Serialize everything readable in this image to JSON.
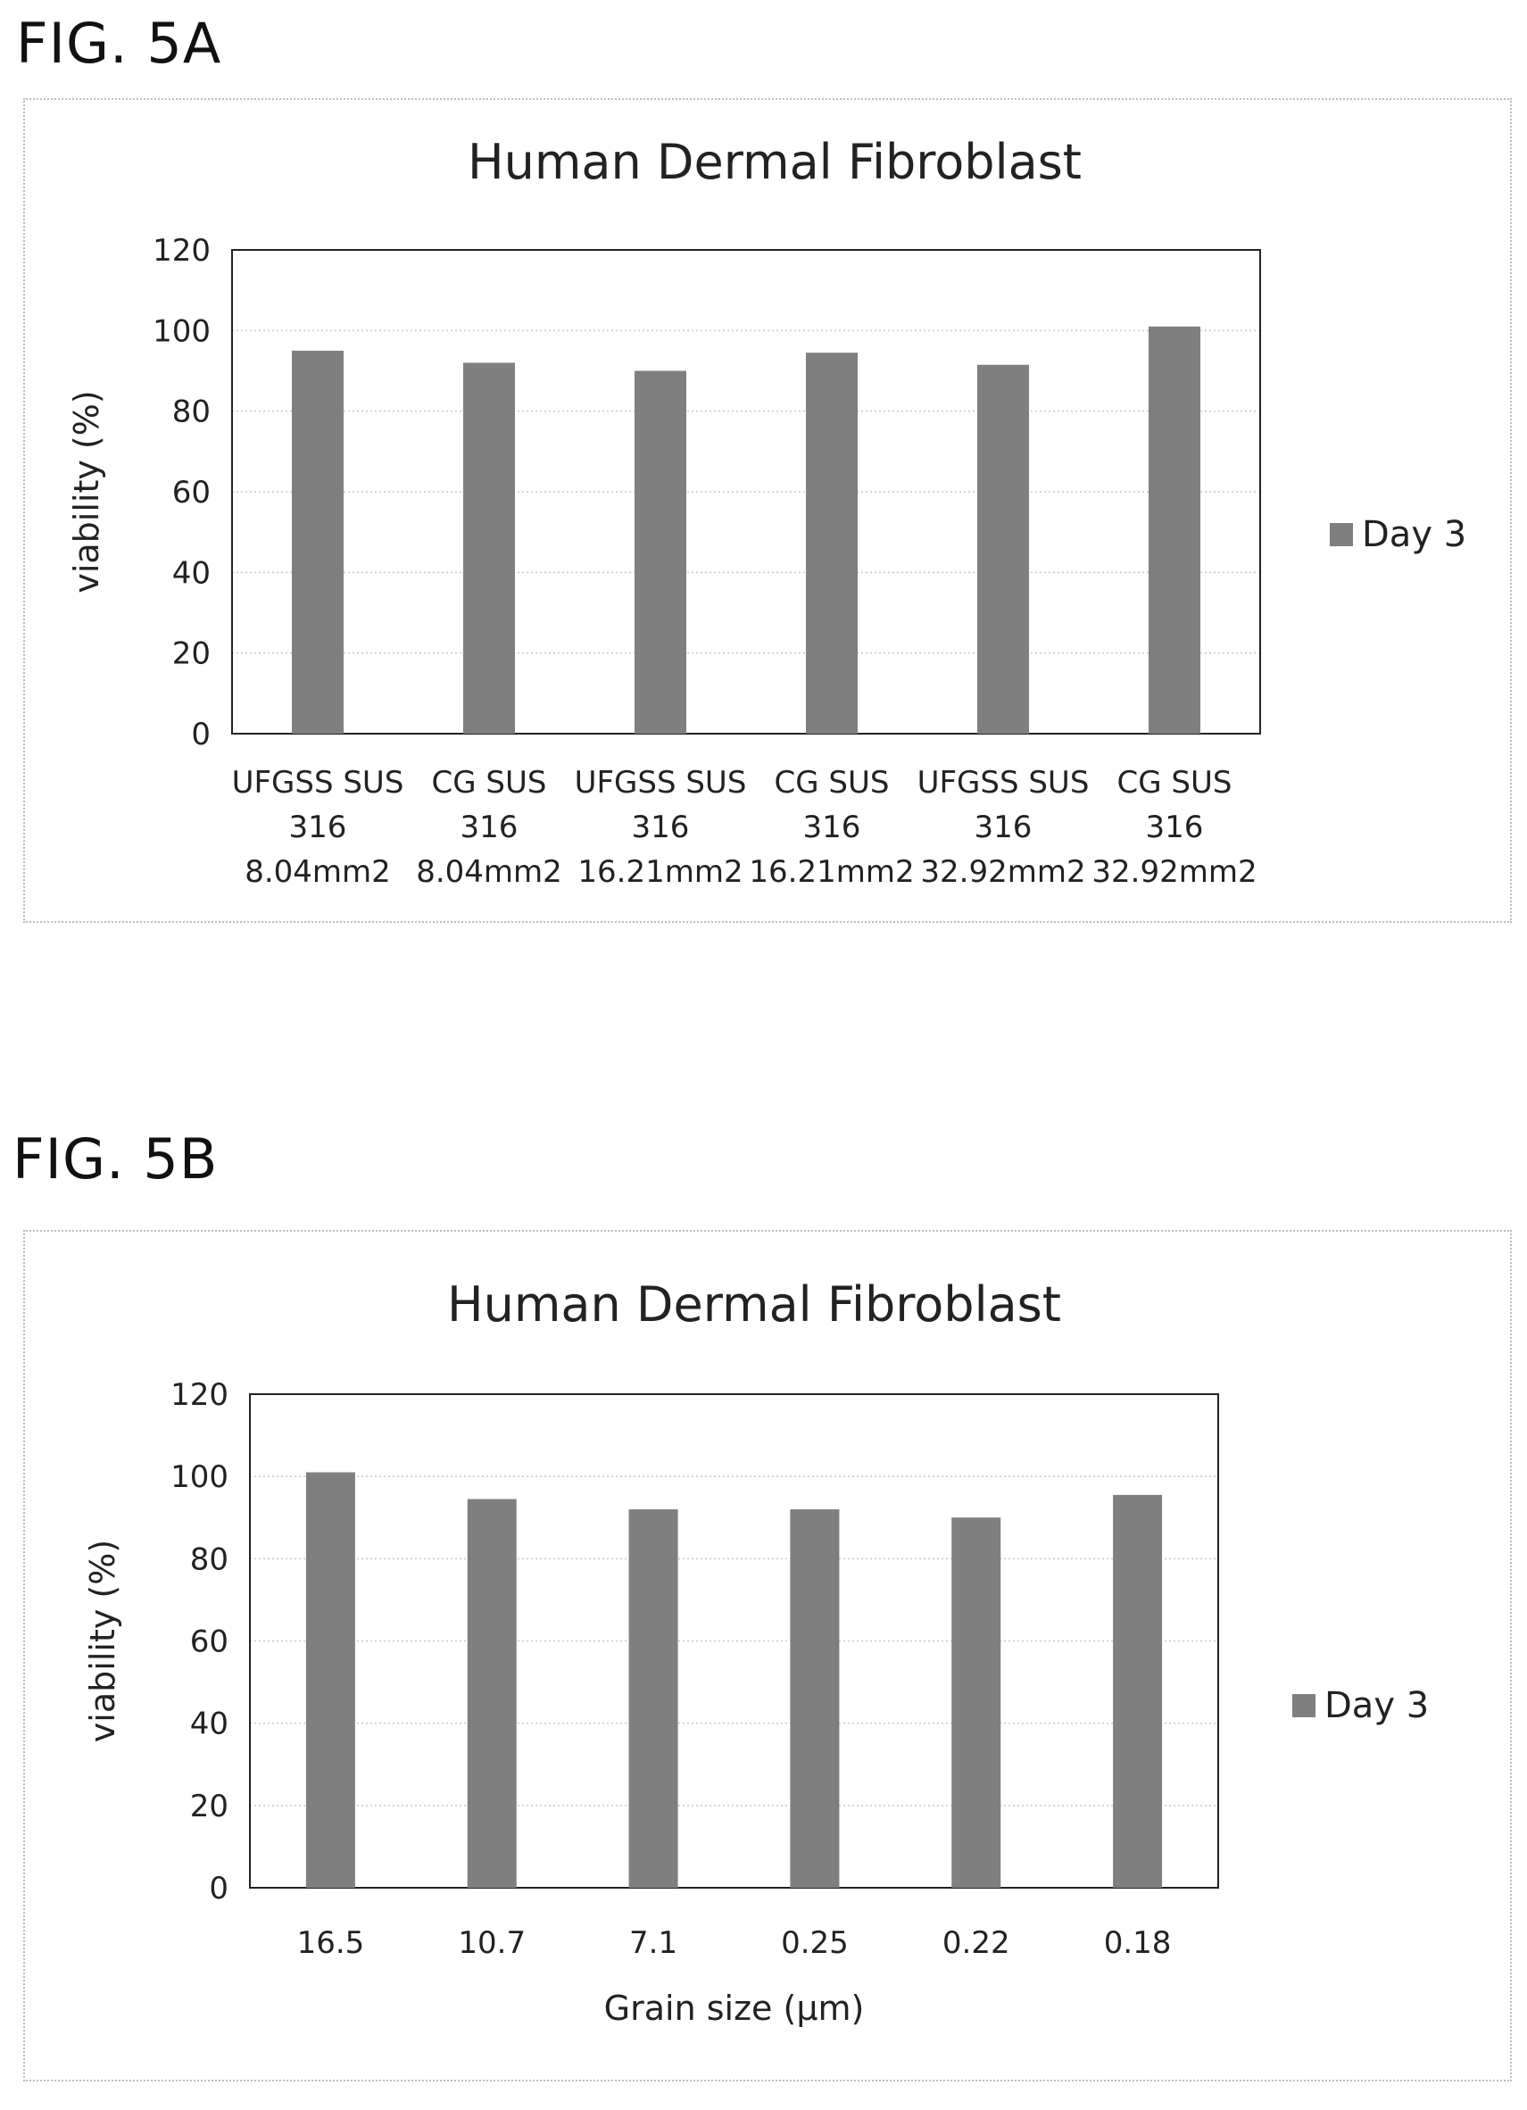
{
  "figures": {
    "a": {
      "label": "FIG. 5A"
    },
    "b": {
      "label": "FIG. 5B"
    }
  },
  "colors": {
    "bar": "#7f7f7f",
    "grid": "#c8c8c8",
    "frame": "#222222"
  },
  "chart_data": [
    {
      "id": "a",
      "type": "bar",
      "title": "Human Dermal Fibroblast",
      "xlabel": "",
      "ylabel": "viability (%)",
      "ylim": [
        0,
        120
      ],
      "yticks": [
        0,
        20,
        40,
        60,
        80,
        100,
        120
      ],
      "grid": true,
      "legend_position": "right",
      "categories": [
        [
          "UFGSS SUS",
          "316",
          "8.04mm2"
        ],
        [
          "CG SUS",
          "316",
          "8.04mm2"
        ],
        [
          "UFGSS SUS",
          "316",
          "16.21mm2"
        ],
        [
          "CG SUS",
          "316",
          "16.21mm2"
        ],
        [
          "UFGSS SUS",
          "316",
          "32.92mm2"
        ],
        [
          "CG SUS",
          "316",
          "32.92mm2"
        ]
      ],
      "series": [
        {
          "name": "Day 3",
          "values": [
            95,
            92,
            90,
            94.5,
            91.5,
            101
          ]
        }
      ]
    },
    {
      "id": "b",
      "type": "bar",
      "title": "Human Dermal Fibroblast",
      "xlabel": "Grain size (μm)",
      "ylabel": "viability (%)",
      "ylim": [
        0,
        120
      ],
      "yticks": [
        0,
        20,
        40,
        60,
        80,
        100,
        120
      ],
      "grid": true,
      "legend_position": "right",
      "categories": [
        [
          "16.5"
        ],
        [
          "10.7"
        ],
        [
          "7.1"
        ],
        [
          "0.25"
        ],
        [
          "0.22"
        ],
        [
          "0.18"
        ]
      ],
      "series": [
        {
          "name": "Day 3",
          "values": [
            101,
            94.5,
            92,
            92,
            90,
            95.5
          ]
        }
      ]
    }
  ]
}
